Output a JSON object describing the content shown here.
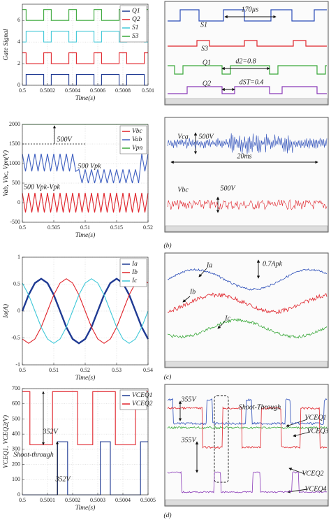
{
  "chart_data": [
    {
      "type": "line",
      "ylabel": "Gate Signal",
      "xlabel": "Time(s)",
      "xlim": [
        0.5,
        0.501
      ],
      "ylim": [
        0,
        7.5
      ],
      "xticks": [
        0.5,
        0.5002,
        0.5004,
        0.5006,
        0.5008,
        0.501
      ],
      "yticks": [
        0,
        2,
        4,
        6
      ],
      "grid": true,
      "legend": "upper right",
      "x": [
        0.5,
        0.50003,
        0.50003,
        0.50017,
        0.50017,
        0.50023,
        0.50023,
        0.50037,
        0.50037,
        0.50043,
        0.50043,
        0.50057,
        0.50057,
        0.50063,
        0.50063,
        0.50077,
        0.50077,
        0.50083,
        0.50083,
        0.50097,
        0.50097,
        0.501
      ],
      "series": [
        {
          "name": "Q1",
          "color": "#1f3a93",
          "values": [
            0,
            0,
            1,
            1,
            0,
            0,
            1,
            1,
            0,
            0,
            1,
            1,
            0,
            0,
            1,
            1,
            0,
            0,
            1,
            1,
            0,
            0
          ]
        },
        {
          "name": "Q2",
          "color": "#e0242b",
          "values": [
            3,
            3,
            2,
            2,
            3,
            3,
            2,
            2,
            3,
            3,
            2,
            2,
            3,
            3,
            2,
            2,
            3,
            3,
            2,
            2,
            3,
            3
          ]
        },
        {
          "name": "S1",
          "color": "#40c8d8",
          "values": [
            4,
            4,
            5,
            5,
            4,
            4,
            5,
            5,
            4,
            4,
            5,
            5,
            4,
            4,
            5,
            5,
            4,
            4,
            5,
            5,
            4,
            4
          ]
        },
        {
          "name": "S3",
          "color": "#3aa83a",
          "values": [
            7,
            7,
            6,
            6,
            7,
            7,
            6,
            6,
            7,
            7,
            6,
            6,
            7,
            7,
            6,
            6,
            7,
            7,
            6,
            6,
            7,
            7
          ]
        }
      ]
    },
    {
      "type": "line",
      "ylabel": "Vab, Vbc, Vpn(V)",
      "xlabel": "Time(s)",
      "xlim": [
        0.5,
        0.52
      ],
      "ylim": [
        -500,
        2000
      ],
      "xticks": [
        0.5,
        0.505,
        0.51,
        0.515,
        0.52
      ],
      "yticks": [
        -500,
        0,
        500,
        1000,
        1500,
        2000
      ],
      "grid": true,
      "legend": "upper right",
      "annotations": [
        "500V",
        "500 Vpk",
        "500 Vpk-Vpk"
      ],
      "x": [
        0.5,
        0.5005,
        0.501,
        0.5015,
        0.502,
        0.5025,
        0.503,
        0.5035,
        0.504,
        0.5045,
        0.505,
        0.5055,
        0.506,
        0.5065,
        0.507,
        0.5075,
        0.508,
        0.5085,
        0.509,
        0.5095,
        0.51,
        0.5105,
        0.511,
        0.5115,
        0.512,
        0.5125,
        0.513,
        0.5135,
        0.514,
        0.5145,
        0.515,
        0.5155,
        0.516,
        0.5165,
        0.517,
        0.5175,
        0.518,
        0.5185,
        0.519,
        0.5195,
        0.52
      ],
      "series": [
        {
          "name": "Vbc",
          "color": "#e0242b",
          "values": [
            250,
            -250,
            250,
            -250,
            250,
            -250,
            250,
            -250,
            250,
            -250,
            250,
            -250,
            250,
            -250,
            250,
            -250,
            250,
            -250,
            250,
            -250,
            250,
            -250,
            250,
            -250,
            250,
            -250,
            250,
            -250,
            250,
            -250,
            250,
            -250,
            250,
            -250,
            250,
            -250,
            250,
            -250,
            250,
            -250,
            250
          ]
        },
        {
          "name": "Vab",
          "color": "#3e5fc0",
          "values": [
            1250,
            800,
            1250,
            800,
            1250,
            800,
            1250,
            800,
            1250,
            800,
            1250,
            800,
            1250,
            800,
            1250,
            800,
            1250,
            800,
            850,
            500,
            850,
            500,
            850,
            500,
            850,
            500,
            850,
            500,
            850,
            500,
            850,
            500,
            850,
            500,
            850,
            500,
            850,
            500,
            1250,
            800,
            1250
          ]
        },
        {
          "name": "Vpn",
          "color": "#3aa83a",
          "values": [
            2000,
            2000,
            2000,
            2000,
            2000,
            2000,
            2000,
            2000,
            2000,
            2000,
            2000,
            2000,
            2000,
            2000,
            2000,
            2000,
            2000,
            2000,
            2000,
            2000,
            2000,
            2000,
            2000,
            2000,
            2000,
            2000,
            2000,
            2000,
            2000,
            2000,
            2000,
            2000,
            2000,
            2000,
            2000,
            2000,
            2000,
            2000,
            2000,
            2000,
            2000
          ]
        }
      ]
    },
    {
      "type": "line",
      "ylabel": "Io(A)",
      "xlabel": "Time(s)",
      "xlim": [
        0.5,
        0.54
      ],
      "ylim": [
        -1,
        1
      ],
      "xticks": [
        0.5,
        0.51,
        0.52,
        0.53,
        0.54
      ],
      "yticks": [
        -1,
        -0.5,
        0,
        0.5,
        1
      ],
      "grid": true,
      "legend": "upper right",
      "x": [
        0.5,
        0.502,
        0.504,
        0.506,
        0.508,
        0.51,
        0.512,
        0.514,
        0.516,
        0.518,
        0.52,
        0.522,
        0.524,
        0.526,
        0.528,
        0.53,
        0.532,
        0.534,
        0.536,
        0.538,
        0.54
      ],
      "series": [
        {
          "name": "Ia",
          "color": "#1f3a93",
          "values": [
            0,
            0.3,
            0.52,
            0.6,
            0.52,
            0.3,
            0,
            -0.3,
            -0.52,
            -0.6,
            -0.52,
            -0.3,
            0,
            0.3,
            0.52,
            0.6,
            0.52,
            0.3,
            0,
            -0.3,
            -0.52
          ]
        },
        {
          "name": "Ib",
          "color": "#e0242b",
          "values": [
            -0.52,
            -0.6,
            -0.52,
            -0.3,
            0,
            0.3,
            0.52,
            0.6,
            0.52,
            0.3,
            0,
            -0.3,
            -0.52,
            -0.6,
            -0.52,
            -0.3,
            0,
            0.3,
            0.52,
            0.6,
            0.52
          ]
        },
        {
          "name": "Ic",
          "color": "#40c8d8",
          "values": [
            0.52,
            0.3,
            0,
            -0.3,
            -0.52,
            -0.6,
            -0.52,
            -0.3,
            0,
            0.3,
            0.52,
            0.6,
            0.52,
            0.3,
            0,
            -0.3,
            -0.52,
            -0.6,
            -0.52,
            -0.3,
            0
          ]
        }
      ]
    },
    {
      "type": "line",
      "ylabel": "VCEQ1, VCEQ2(V)",
      "xlabel": "Time(s)",
      "xlim": [
        0.5,
        0.5005
      ],
      "ylim": [
        0,
        700
      ],
      "xticks": [
        0.5,
        0.5001,
        0.5002,
        0.5003,
        0.5004,
        0.5005
      ],
      "yticks": [
        0,
        100,
        200,
        300,
        400,
        500,
        600,
        700
      ],
      "grid": true,
      "legend": "upper right",
      "annotations": [
        "352V",
        "Shoot-through",
        "352V"
      ],
      "series": [
        {
          "name": "VCEQ1",
          "color": "#1f3a93",
          "x": [
            0.5,
            0.50014,
            0.50014,
            0.50018,
            0.50018,
            0.50031,
            0.50031,
            0.50035,
            0.50035,
            0.50047,
            0.50047,
            0.5005
          ],
          "values": [
            0,
            0,
            350,
            350,
            0,
            0,
            350,
            350,
            0,
            0,
            350,
            350
          ]
        },
        {
          "name": "VCEQ2",
          "color": "#e0242b",
          "x": [
            0.5,
            0.50003,
            0.50003,
            0.50012,
            0.50012,
            0.50022,
            0.50022,
            0.50028,
            0.50028,
            0.50037,
            0.50037,
            0.50045,
            0.50045,
            0.5005
          ],
          "values": [
            680,
            680,
            330,
            330,
            680,
            680,
            330,
            330,
            680,
            680,
            330,
            330,
            680,
            680
          ]
        }
      ]
    }
  ],
  "scope_panels": [
    {
      "annotations": [
        "170µs",
        "S1",
        "S3",
        "Q1",
        "d2=0.8",
        "Q2",
        "dST=0.4"
      ]
    },
    {
      "annotations": [
        "Vca",
        "500V",
        "20ms",
        "Vbc",
        "500V"
      ]
    },
    {
      "annotations": [
        "0.7Apk",
        "Ia",
        "Ib",
        "Ic"
      ]
    },
    {
      "annotations": [
        "355V",
        "Shoot-Through",
        "VCEQ1",
        "VCEQ3",
        "355V",
        "VCEQ2",
        "VCEQ4"
      ]
    }
  ],
  "captions": [
    "(b)",
    "(c)",
    "(d)"
  ]
}
